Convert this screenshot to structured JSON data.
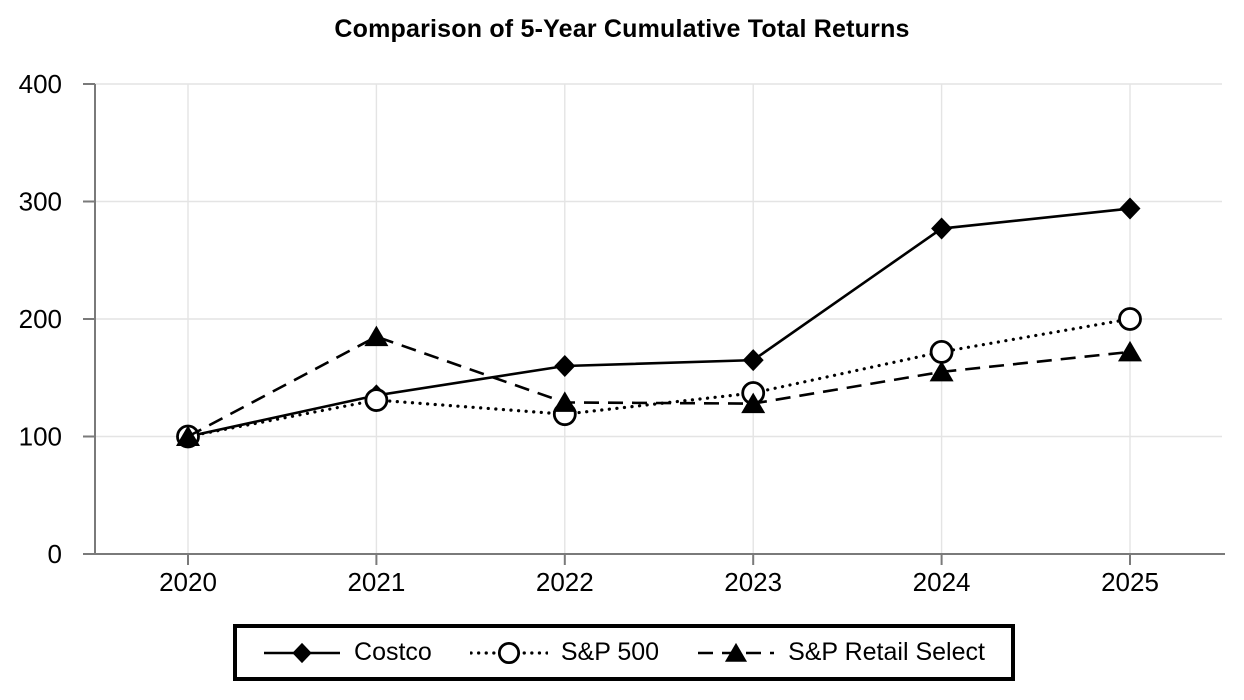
{
  "page": {
    "background": "#ffffff"
  },
  "chart_data": {
    "type": "line",
    "title": "Comparison of 5-Year Cumulative Total Returns",
    "categories": [
      "2020",
      "2021",
      "2022",
      "2023",
      "2024",
      "2025"
    ],
    "series": [
      {
        "name": "Costco",
        "values": [
          100,
          135,
          160,
          165,
          277,
          294
        ],
        "line_style": "solid",
        "marker": "filled-diamond",
        "color": "#000000"
      },
      {
        "name": "S&P 500",
        "values": [
          100,
          131,
          119,
          137,
          172,
          200
        ],
        "line_style": "dotted",
        "marker": "open-circle",
        "color": "#000000"
      },
      {
        "name": "S&P Retail Select",
        "values": [
          100,
          185,
          129,
          128,
          155,
          172
        ],
        "line_style": "dashed",
        "marker": "filled-triangle",
        "color": "#000000"
      }
    ],
    "xlabel": "",
    "ylabel": "",
    "ylim": [
      0,
      400
    ],
    "yticks": [
      0,
      100,
      200,
      300,
      400
    ],
    "grid": true,
    "legend_position": "bottom",
    "axis_color": "#7a7a7a",
    "gridline_color": "#e4e4e4",
    "text_color": "#000000",
    "plot_background": "#ffffff"
  }
}
